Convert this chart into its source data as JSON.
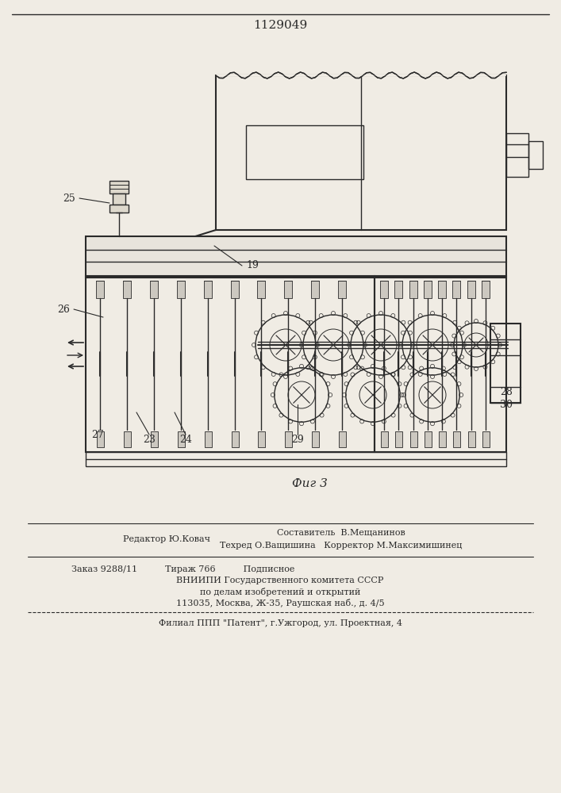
{
  "patent_number": "1129049",
  "fig_label": "Фиг 3",
  "bg_color": "#f0ece4",
  "line_color": "#2a2a2a",
  "footer_lines": [
    "Редактор Ю.Ковач",
    "Составитель  В.Мещанинов",
    "Техред О.Ващишина   Корректор М.Максимишинец",
    "Заказ 9288/11          Тираж 766          Подписное",
    "ВНИИПИ Государственного комитета СССР",
    "по делам изобретений и открытий",
    "113035, Москва, Ж-35, Раушская наб., д. 4/5",
    "Филиал ППП \"Патент\", г.Ужгород, ул. Проектная, 4"
  ]
}
